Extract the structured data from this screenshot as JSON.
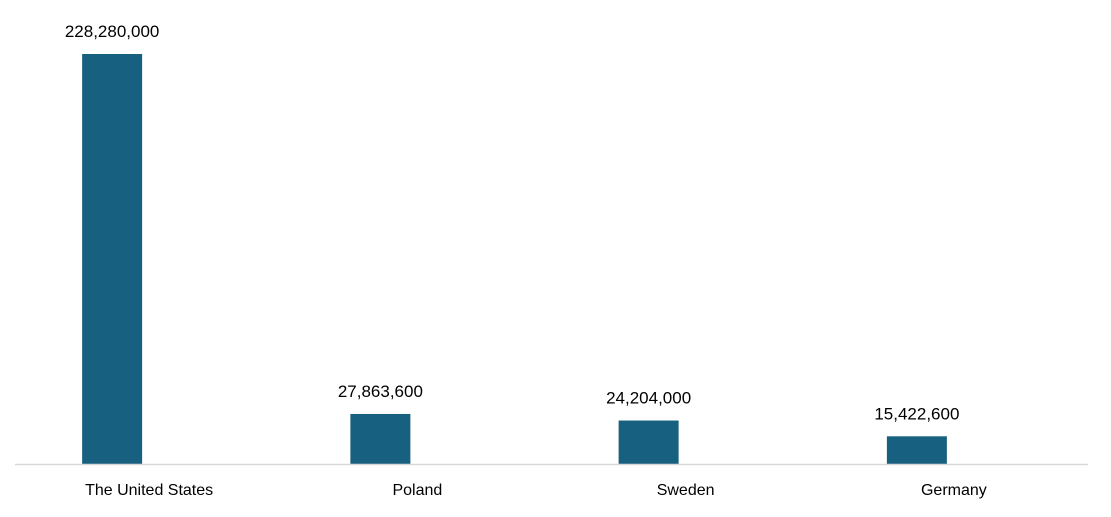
{
  "chart_data": {
    "type": "bar",
    "categories": [
      "The United States",
      "Poland",
      "Sweden",
      "Germany"
    ],
    "values": [
      228280000,
      27863600,
      24204000,
      15422600
    ],
    "data_labels": [
      "228,280,000",
      "27,863,600",
      "24,204,000",
      "15,422,600"
    ],
    "title": "",
    "xlabel": "",
    "ylabel": "",
    "ylim": [
      0,
      228280000
    ],
    "grid": false,
    "legend": "none",
    "colors": {
      "bar": "#17607F",
      "axis": "#D9D9D9"
    }
  }
}
